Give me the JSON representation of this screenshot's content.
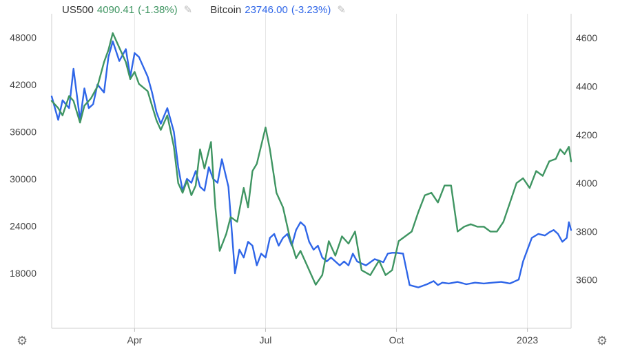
{
  "legend": {
    "us500": {
      "symbol": "US500",
      "value": "4090.41",
      "change": "(-1.38%)"
    },
    "bitcoin": {
      "symbol": "Bitcoin",
      "value": "23746.00",
      "change": "(-3.23%)"
    }
  },
  "colors": {
    "us500": "#3f9562",
    "bitcoin": "#2f66e8",
    "axis": "#444444",
    "grid": "#e6e6e6"
  },
  "icons": {
    "edit": "pencil-icon",
    "settings": "gear-icon"
  },
  "chart_data": {
    "type": "line",
    "grid": "vertical",
    "x_ticks": [
      "Apr",
      "Jul",
      "Oct",
      "2023"
    ],
    "x_tick_positions": [
      1.2,
      4.2,
      7.2,
      10.2
    ],
    "x_range": [
      -0.7,
      11.2
    ],
    "left_axis": {
      "ticks": [
        "48000",
        "42000",
        "36000",
        "30000",
        "24000",
        "18000"
      ],
      "range": [
        11000,
        51000
      ]
    },
    "right_axis": {
      "ticks": [
        "4600",
        "4400",
        "4200",
        "4000",
        "3800",
        "3600"
      ],
      "range": [
        3400,
        4700
      ]
    },
    "series": [
      {
        "name": "Bitcoin",
        "axis": "left",
        "x": [
          -0.7,
          -0.55,
          -0.45,
          -0.3,
          -0.2,
          -0.05,
          0.05,
          0.15,
          0.25,
          0.35,
          0.5,
          0.6,
          0.7,
          0.85,
          1.0,
          1.1,
          1.2,
          1.3,
          1.5,
          1.6,
          1.7,
          1.8,
          1.95,
          2.1,
          2.2,
          2.3,
          2.4,
          2.5,
          2.6,
          2.7,
          2.8,
          2.9,
          3.0,
          3.1,
          3.2,
          3.35,
          3.5,
          3.6,
          3.7,
          3.8,
          3.9,
          4.0,
          4.1,
          4.2,
          4.3,
          4.4,
          4.5,
          4.6,
          4.7,
          4.8,
          4.9,
          5.0,
          5.1,
          5.2,
          5.3,
          5.4,
          5.5,
          5.6,
          5.7,
          5.8,
          5.9,
          6.0,
          6.1,
          6.2,
          6.3,
          6.5,
          6.7,
          6.9,
          7.0,
          7.1,
          7.2,
          7.35,
          7.5,
          7.7,
          7.9,
          8.05,
          8.15,
          8.25,
          8.4,
          8.6,
          8.8,
          9.0,
          9.2,
          9.4,
          9.6,
          9.8,
          10.0,
          10.1,
          10.2,
          10.3,
          10.45,
          10.6,
          10.7,
          10.8,
          10.9,
          11.0,
          11.1,
          11.15,
          11.2
        ],
        "values": [
          40500,
          37500,
          40000,
          39000,
          44000,
          37500,
          41500,
          39000,
          39500,
          42000,
          41000,
          45500,
          47500,
          45000,
          46500,
          43000,
          46000,
          45500,
          43000,
          41000,
          38500,
          37000,
          39000,
          36000,
          31500,
          28500,
          30000,
          29500,
          31000,
          29000,
          28500,
          31500,
          30000,
          29500,
          32500,
          29000,
          18000,
          21000,
          20000,
          22000,
          21500,
          19000,
          20500,
          20000,
          22500,
          23000,
          21500,
          22500,
          23000,
          21500,
          23500,
          24500,
          24000,
          22000,
          21000,
          21500,
          20000,
          19500,
          20000,
          19500,
          19000,
          19500,
          19000,
          20500,
          19500,
          19000,
          19800,
          19400,
          20500,
          20600,
          20600,
          20500,
          16500,
          16200,
          16600,
          17000,
          16500,
          16800,
          16700,
          16900,
          16600,
          16800,
          16700,
          16800,
          16900,
          16700,
          17200,
          19500,
          21000,
          22500,
          23000,
          22800,
          23200,
          23500,
          23000,
          22000,
          22500,
          24500,
          23500
        ]
      },
      {
        "name": "US500",
        "axis": "right",
        "x": [
          -0.7,
          -0.55,
          -0.45,
          -0.3,
          -0.2,
          -0.05,
          0.05,
          0.2,
          0.35,
          0.5,
          0.6,
          0.7,
          0.85,
          1.0,
          1.1,
          1.2,
          1.3,
          1.5,
          1.6,
          1.7,
          1.8,
          1.95,
          2.1,
          2.2,
          2.3,
          2.4,
          2.5,
          2.6,
          2.7,
          2.8,
          2.95,
          3.05,
          3.15,
          3.3,
          3.4,
          3.55,
          3.7,
          3.8,
          3.9,
          4.0,
          4.2,
          4.3,
          4.45,
          4.6,
          4.75,
          4.9,
          5.0,
          5.15,
          5.25,
          5.35,
          5.5,
          5.65,
          5.8,
          5.95,
          6.1,
          6.25,
          6.4,
          6.6,
          6.8,
          6.95,
          7.1,
          7.25,
          7.4,
          7.55,
          7.7,
          7.85,
          8.0,
          8.15,
          8.3,
          8.45,
          8.6,
          8.75,
          8.9,
          9.05,
          9.2,
          9.35,
          9.5,
          9.65,
          9.8,
          9.95,
          10.1,
          10.25,
          10.4,
          10.55,
          10.7,
          10.85,
          10.95,
          11.05,
          11.15,
          11.2
        ],
        "values": [
          4340,
          4310,
          4280,
          4360,
          4340,
          4250,
          4320,
          4350,
          4400,
          4500,
          4550,
          4620,
          4560,
          4500,
          4430,
          4460,
          4410,
          4380,
          4320,
          4260,
          4220,
          4280,
          4150,
          4000,
          3960,
          4010,
          3950,
          3990,
          4140,
          4060,
          4170,
          3900,
          3720,
          3790,
          3860,
          3840,
          3980,
          3900,
          4050,
          4080,
          4230,
          4140,
          3960,
          3900,
          3780,
          3690,
          3720,
          3660,
          3620,
          3580,
          3620,
          3760,
          3700,
          3780,
          3750,
          3800,
          3640,
          3620,
          3680,
          3620,
          3640,
          3760,
          3780,
          3800,
          3880,
          3950,
          3960,
          3920,
          3990,
          3990,
          3800,
          3820,
          3830,
          3820,
          3820,
          3800,
          3800,
          3840,
          3920,
          4000,
          4020,
          3980,
          4050,
          4030,
          4090,
          4100,
          4140,
          4120,
          4150,
          4090
        ]
      }
    ]
  }
}
